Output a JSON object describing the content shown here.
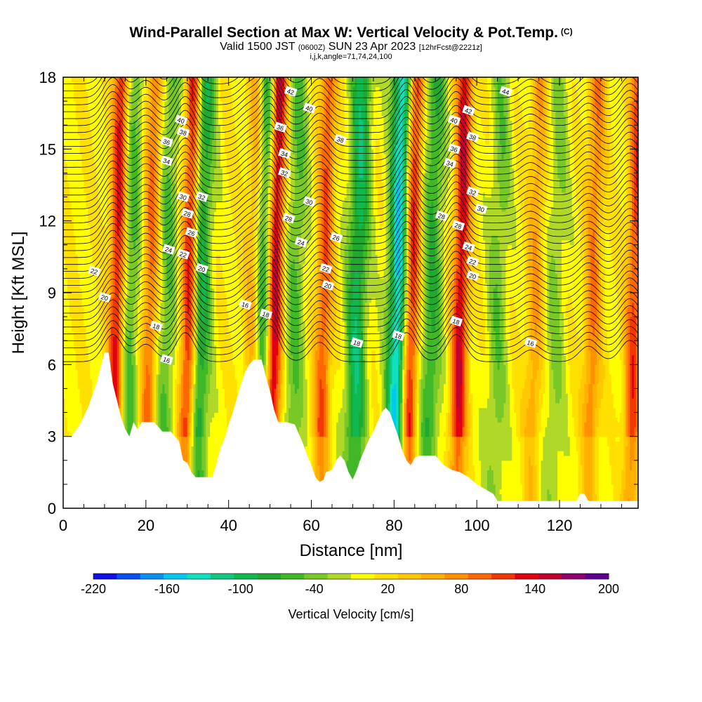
{
  "title": {
    "main": "Wind-Parallel Section at Max W: Vertical Velocity & Pot.Temp.",
    "main_tag": "(C)",
    "valid_prefix": "Valid 1500 JST",
    "valid_utc": "(0600Z)",
    "valid_date": "SUN 23 Apr 2023",
    "forecast_tag": "[12hrFcst@2221z]",
    "indices": "i,j,k,angle=71,74,24,100"
  },
  "chart_data": {
    "type": "heatmap",
    "xlabel": "Distance [nm]",
    "ylabel": "Height [Kft MSL]",
    "xlim": [
      0,
      139
    ],
    "ylim": [
      0,
      18
    ],
    "xticks": [
      0,
      20,
      40,
      60,
      80,
      100,
      120
    ],
    "yticks": [
      0,
      3,
      6,
      9,
      12,
      15,
      18
    ],
    "grid": false,
    "colorbar": {
      "label": "Vertical Velocity [cm/s]",
      "ticks": [
        "-220",
        "-160",
        "-100",
        "-40",
        "20",
        "80",
        "140",
        "200"
      ],
      "min": -220,
      "max": 200,
      "step": 20,
      "colors": [
        "#1010e8",
        "#0a50f0",
        "#0a90f5",
        "#00c8f0",
        "#10e0c0",
        "#10c880",
        "#10b850",
        "#20a830",
        "#40b828",
        "#78c828",
        "#b0d828",
        "#ffff00",
        "#ffe000",
        "#ffc800",
        "#ffb000",
        "#ff9000",
        "#ff6800",
        "#f03800",
        "#e00010",
        "#c00030",
        "#900070",
        "#600090"
      ]
    },
    "updrafts": [
      {
        "x": 12,
        "w": 140
      },
      {
        "x": 20,
        "w": 90
      },
      {
        "x": 29.5,
        "w": 150
      },
      {
        "x": 45,
        "w": 70
      },
      {
        "x": 50,
        "w": 180
      },
      {
        "x": 62,
        "w": 100
      },
      {
        "x": 83,
        "w": 150
      },
      {
        "x": 95,
        "w": 140
      },
      {
        "x": 113,
        "w": 60
      },
      {
        "x": 127,
        "w": 80
      },
      {
        "x": 137,
        "w": 110
      }
    ],
    "downdrafts": [
      {
        "x": 15,
        "w": -70
      },
      {
        "x": 24,
        "w": -60
      },
      {
        "x": 32,
        "w": -110
      },
      {
        "x": 47.5,
        "w": -110
      },
      {
        "x": 55,
        "w": -60
      },
      {
        "x": 70,
        "w": -110
      },
      {
        "x": 80,
        "w": -170
      },
      {
        "x": 88,
        "w": -80
      },
      {
        "x": 104,
        "w": -50
      },
      {
        "x": 118,
        "w": -40
      }
    ],
    "terrain": [
      [
        0,
        3.0
      ],
      [
        2,
        3.0
      ],
      [
        4,
        3.5
      ],
      [
        6,
        4.2
      ],
      [
        8,
        5.2
      ],
      [
        10,
        6.5
      ],
      [
        11,
        6.5
      ],
      [
        12,
        5.2
      ],
      [
        13,
        4.5
      ],
      [
        14,
        3.8
      ],
      [
        15,
        3.3
      ],
      [
        16,
        3.0
      ],
      [
        17,
        3.6
      ],
      [
        18,
        3.3
      ],
      [
        19,
        3.6
      ],
      [
        20,
        3.6
      ],
      [
        22,
        3.6
      ],
      [
        24,
        3.2
      ],
      [
        26,
        3.2
      ],
      [
        28,
        2.8
      ],
      [
        29,
        2.0
      ],
      [
        30,
        1.9
      ],
      [
        31,
        1.5
      ],
      [
        32,
        1.3
      ],
      [
        36,
        1.3
      ],
      [
        37,
        1.8
      ],
      [
        38,
        2.5
      ],
      [
        39,
        2.9
      ],
      [
        40,
        3.5
      ],
      [
        41,
        4.0
      ],
      [
        42,
        4.6
      ],
      [
        43,
        5.2
      ],
      [
        44,
        5.7
      ],
      [
        45,
        6.0
      ],
      [
        46,
        6.2
      ],
      [
        48,
        6.2
      ],
      [
        49,
        5.5
      ],
      [
        50,
        4.9
      ],
      [
        51,
        4.1
      ],
      [
        52,
        3.6
      ],
      [
        54,
        3.6
      ],
      [
        56,
        3.5
      ],
      [
        57,
        3.1
      ],
      [
        58,
        2.7
      ],
      [
        59,
        2.2
      ],
      [
        60,
        1.8
      ],
      [
        61,
        1.3
      ],
      [
        62,
        1.1
      ],
      [
        63,
        1.2
      ],
      [
        63.5,
        1.5
      ],
      [
        65,
        1.6
      ],
      [
        66,
        2.0
      ],
      [
        67,
        2.2
      ],
      [
        68,
        2.0
      ],
      [
        69,
        1.5
      ],
      [
        70,
        1.2
      ],
      [
        71,
        1.6
      ],
      [
        72,
        2.1
      ],
      [
        73,
        2.5
      ],
      [
        74,
        2.9
      ],
      [
        75,
        3.2
      ],
      [
        76,
        3.6
      ],
      [
        77,
        4.0
      ],
      [
        78,
        4.2
      ],
      [
        79,
        4.0
      ],
      [
        80,
        3.5
      ],
      [
        81,
        3.0
      ],
      [
        82,
        2.4
      ],
      [
        83,
        2.0
      ],
      [
        84,
        1.8
      ],
      [
        85,
        2.1
      ],
      [
        86,
        2.2
      ],
      [
        90,
        2.2
      ],
      [
        91,
        2.0
      ],
      [
        92,
        1.8
      ],
      [
        94,
        1.6
      ],
      [
        96,
        1.5
      ],
      [
        98,
        1.3
      ],
      [
        100,
        1.0
      ],
      [
        102,
        0.8
      ],
      [
        104,
        0.6
      ],
      [
        105,
        0.3
      ],
      [
        124,
        0.3
      ],
      [
        125,
        0.6
      ],
      [
        126,
        0.6
      ],
      [
        127,
        0.3
      ],
      [
        139,
        0.3
      ]
    ],
    "theta_levels": [
      16,
      18,
      20,
      22,
      24,
      26,
      28,
      30,
      32,
      34,
      36,
      38,
      40,
      42,
      44
    ],
    "theta_labels": [
      {
        "text": "40",
        "x": 28.5,
        "y": 16.2
      },
      {
        "text": "38",
        "x": 29,
        "y": 15.7
      },
      {
        "text": "36",
        "x": 25,
        "y": 15.3
      },
      {
        "text": "34",
        "x": 25,
        "y": 14.5
      },
      {
        "text": "30",
        "x": 29,
        "y": 13.0
      },
      {
        "text": "32",
        "x": 33.5,
        "y": 13.0
      },
      {
        "text": "28",
        "x": 30,
        "y": 12.3
      },
      {
        "text": "26",
        "x": 31,
        "y": 11.5
      },
      {
        "text": "24",
        "x": 25.5,
        "y": 10.8
      },
      {
        "text": "22",
        "x": 29,
        "y": 10.6
      },
      {
        "text": "20",
        "x": 33.5,
        "y": 10.0
      },
      {
        "text": "22",
        "x": 7.5,
        "y": 9.9
      },
      {
        "text": "20",
        "x": 10,
        "y": 8.8
      },
      {
        "text": "18",
        "x": 22.5,
        "y": 7.6
      },
      {
        "text": "16",
        "x": 25,
        "y": 6.2
      },
      {
        "text": "42",
        "x": 55,
        "y": 17.4
      },
      {
        "text": "40",
        "x": 59.5,
        "y": 16.7
      },
      {
        "text": "36",
        "x": 52.5,
        "y": 15.9
      },
      {
        "text": "38",
        "x": 67,
        "y": 15.4
      },
      {
        "text": "34",
        "x": 53.5,
        "y": 14.8
      },
      {
        "text": "32",
        "x": 53.5,
        "y": 14.0
      },
      {
        "text": "30",
        "x": 59.5,
        "y": 12.8
      },
      {
        "text": "28",
        "x": 54.5,
        "y": 12.1
      },
      {
        "text": "26",
        "x": 66,
        "y": 11.3
      },
      {
        "text": "24",
        "x": 57.5,
        "y": 11.1
      },
      {
        "text": "22",
        "x": 63.5,
        "y": 10.0
      },
      {
        "text": "20",
        "x": 64,
        "y": 9.3
      },
      {
        "text": "16",
        "x": 44,
        "y": 8.5
      },
      {
        "text": "18",
        "x": 49,
        "y": 8.1
      },
      {
        "text": "18",
        "x": 71,
        "y": 6.9
      },
      {
        "text": "18",
        "x": 81,
        "y": 7.2
      },
      {
        "text": "44",
        "x": 107,
        "y": 17.4
      },
      {
        "text": "42",
        "x": 98,
        "y": 16.6
      },
      {
        "text": "40",
        "x": 94.5,
        "y": 16.2
      },
      {
        "text": "38",
        "x": 99,
        "y": 15.5
      },
      {
        "text": "36",
        "x": 94.5,
        "y": 15.0
      },
      {
        "text": "34",
        "x": 93.5,
        "y": 14.4
      },
      {
        "text": "32",
        "x": 99,
        "y": 13.2
      },
      {
        "text": "30",
        "x": 101,
        "y": 12.5
      },
      {
        "text": "28",
        "x": 91.5,
        "y": 12.2
      },
      {
        "text": "28",
        "x": 95.5,
        "y": 11.8
      },
      {
        "text": "24",
        "x": 98,
        "y": 10.9
      },
      {
        "text": "22",
        "x": 99,
        "y": 10.3
      },
      {
        "text": "20",
        "x": 99,
        "y": 9.7
      },
      {
        "text": "18",
        "x": 95,
        "y": 7.8
      },
      {
        "text": "16",
        "x": 113,
        "y": 6.9
      }
    ]
  }
}
